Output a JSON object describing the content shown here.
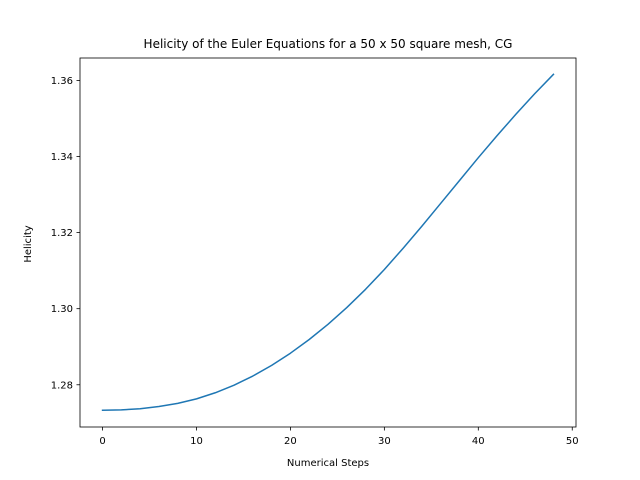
{
  "chart_data": {
    "type": "line",
    "title": "Helicity of the Euler Equations for a 50 x 50 square mesh, CG",
    "xlabel": "Numerical Steps",
    "ylabel": "Helicity",
    "xlim": [
      -2.4,
      50.4
    ],
    "ylim": [
      1.2689,
      1.3659
    ],
    "xticks": [
      0,
      10,
      20,
      30,
      40,
      50
    ],
    "yticks": [
      1.28,
      1.3,
      1.32,
      1.34,
      1.36
    ],
    "ytick_labels": [
      "1.28",
      "1.30",
      "1.32",
      "1.34",
      "1.36"
    ],
    "grid": false,
    "legend": "none",
    "color": "#1f77b4",
    "series": [
      {
        "x": [
          0,
          2,
          4,
          6,
          8,
          10,
          12,
          14,
          16,
          18,
          20,
          22,
          24,
          26,
          28,
          30,
          32,
          34,
          36,
          38,
          40,
          42,
          44,
          46,
          48
        ],
        "values": [
          1.2733,
          1.2734,
          1.2737,
          1.2743,
          1.2751,
          1.2763,
          1.2779,
          1.2799,
          1.2823,
          1.2851,
          1.2883,
          1.2919,
          1.2959,
          1.3003,
          1.3051,
          1.3103,
          1.3159,
          1.3217,
          1.3277,
          1.3337,
          1.3397,
          1.3455,
          1.3511,
          1.3565,
          1.3616
        ]
      }
    ]
  }
}
